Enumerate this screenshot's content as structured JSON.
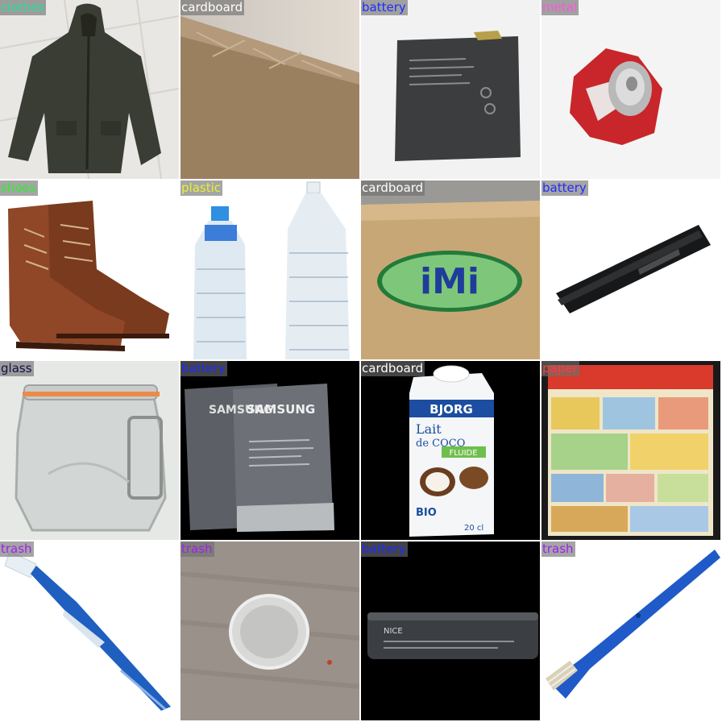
{
  "tiles": [
    {
      "label": "clothes",
      "color": "#22e0a0"
    },
    {
      "label": "cardboard",
      "color": "#ffffff"
    },
    {
      "label": "battery",
      "color": "#1f2bff"
    },
    {
      "label": "metal",
      "color": "#ff55dd"
    },
    {
      "label": "shoes",
      "color": "#2bf02b"
    },
    {
      "label": "plastic",
      "color": "#e8f02b"
    },
    {
      "label": "cardboard",
      "color": "#ffffff"
    },
    {
      "label": "battery",
      "color": "#1f2bff"
    },
    {
      "label": "glass",
      "color": "#10104a"
    },
    {
      "label": "battery",
      "color": "#1f2bff"
    },
    {
      "label": "cardboard",
      "color": "#ffffff"
    },
    {
      "label": "paper",
      "color": "#ff3b3b"
    },
    {
      "label": "trash",
      "color": "#a020f0"
    },
    {
      "label": "trash",
      "color": "#a020f0"
    },
    {
      "label": "battery",
      "color": "#1f2bff"
    },
    {
      "label": "trash",
      "color": "#a020f0"
    }
  ],
  "photo_text": {
    "samsung_1": "SAMSUNG",
    "samsung_2": "SAMSUNG",
    "box_brand": "iMi",
    "bjorg": "BJORG",
    "lait": "Lait",
    "de_coco": "de COCO",
    "fluide": "FLUIDE",
    "bio": "BIO",
    "volume": "20 cl",
    "nice": "NICE"
  }
}
